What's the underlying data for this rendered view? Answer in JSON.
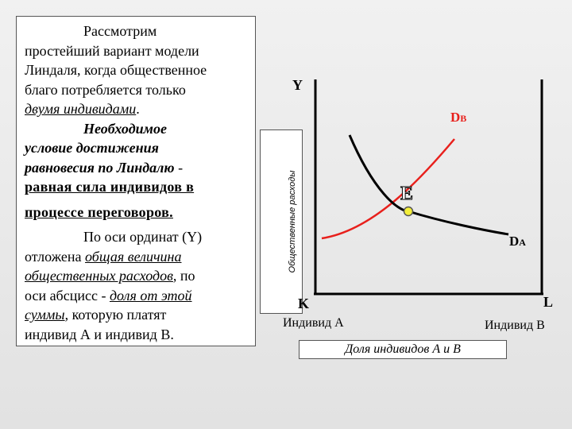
{
  "text": {
    "p1_line1": "Рассмотрим",
    "p1_line2": "простейший вариант модели",
    "p1_line3": "Линдаля, когда общественное",
    "p1_line4": "благо потребляется только",
    "p1_emph": "двумя индивидами",
    "p1_end": ".",
    "p2_line1": "Необходимое",
    "p2_line2": "условие достижения",
    "p2_line3a": "равновесия по Линдалю",
    "p2_line3b": " -",
    "p2_line4": "равная сила индивидов в",
    "p2_line5": "процессе переговоров.",
    "p3_line1": "По оси ординат (Y)",
    "p3_line2a": "отложена ",
    "p3_line2b": "общая величина",
    "p3_line3a": "общественных расходов",
    "p3_line3b": ", по",
    "p3_line4a": "оси абсцисс - ",
    "p3_line4b": "доля от этой",
    "p3_line5a": "суммы",
    "p3_line5b": ", которую платят",
    "p3_line6": "индивид А и индивид В."
  },
  "diagram": {
    "y_axis_label": "Y",
    "y_axis_title": "Общественные расходы",
    "x_axis_title": "Доля индивидов А и В",
    "origin_left": "K",
    "origin_right": "L",
    "individual_a": "Индивид А",
    "individual_b": "Индивид В",
    "curve_b_label": "D",
    "curve_b_sub": "B",
    "curve_a_label": "D",
    "curve_a_sub": "A",
    "equilibrium_label": "E",
    "curve_b_color": "#e8201c",
    "curve_a_color": "#000000",
    "equilibrium_color": "#f4ef3a"
  }
}
